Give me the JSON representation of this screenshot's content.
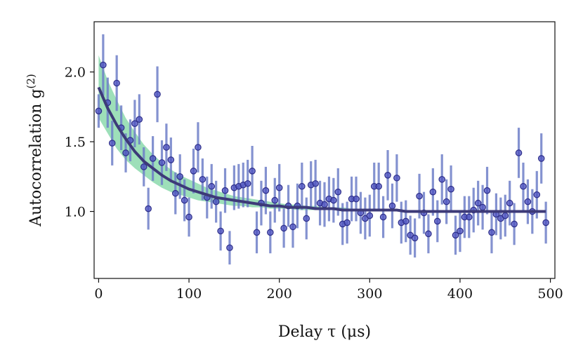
{
  "chart_data": {
    "type": "scatter",
    "title": "",
    "xlabel": "Delay τ (μs)",
    "ylabel": "Autocorrelation g",
    "ylabel_superscript": "(2)",
    "xlim": [
      -5,
      505
    ],
    "ylim": [
      0.52,
      2.36
    ],
    "xticks": [
      0,
      100,
      200,
      300,
      400,
      500
    ],
    "xtick_labels": [
      "0",
      "100",
      "200",
      "300",
      "400",
      "500"
    ],
    "yticks": [
      1.0,
      1.5,
      2.0
    ],
    "ytick_labels": [
      "1.0",
      "1.5",
      "2.0"
    ],
    "grid": false,
    "legend": "none",
    "colors": {
      "points": "#4b4fbf",
      "errorbars": "#6f7fc8",
      "fit_line": "#3d3a78",
      "band": "#5cc98a"
    },
    "series": [
      {
        "kind": "errorbar_points",
        "x": [
          0,
          5,
          10,
          15,
          20,
          25,
          30,
          35,
          40,
          45,
          50,
          55,
          60,
          65,
          70,
          75,
          80,
          85,
          90,
          95,
          100,
          105,
          110,
          115,
          120,
          125,
          130,
          135,
          140,
          145,
          150,
          155,
          160,
          165,
          170,
          175,
          180,
          185,
          190,
          195,
          200,
          205,
          210,
          215,
          220,
          225,
          230,
          235,
          240,
          245,
          250,
          255,
          260,
          265,
          270,
          275,
          280,
          285,
          290,
          295,
          300,
          305,
          310,
          315,
          320,
          325,
          330,
          335,
          340,
          345,
          350,
          355,
          360,
          365,
          370,
          375,
          380,
          385,
          390,
          395,
          400,
          405,
          410,
          415,
          420,
          425,
          430,
          435,
          440,
          445,
          450,
          455,
          460,
          465,
          470,
          475,
          480,
          485,
          490,
          495
        ],
        "y": [
          1.72,
          2.05,
          1.78,
          1.49,
          1.92,
          1.6,
          1.42,
          1.51,
          1.63,
          1.66,
          1.32,
          1.02,
          1.38,
          1.84,
          1.35,
          1.46,
          1.37,
          1.13,
          1.25,
          1.08,
          0.96,
          1.29,
          1.46,
          1.23,
          1.1,
          1.18,
          1.07,
          0.86,
          1.15,
          0.74,
          1.17,
          1.18,
          1.19,
          1.2,
          1.29,
          0.85,
          1.06,
          1.15,
          0.85,
          1.08,
          1.17,
          0.88,
          1.04,
          0.89,
          1.04,
          1.18,
          0.95,
          1.19,
          1.2,
          1.06,
          1.05,
          1.09,
          1.08,
          1.14,
          0.91,
          0.92,
          1.09,
          1.09,
          0.99,
          0.95,
          0.97,
          1.18,
          1.18,
          0.96,
          1.26,
          1.04,
          1.24,
          0.92,
          0.93,
          0.83,
          0.81,
          1.11,
          0.99,
          0.84,
          1.14,
          0.93,
          1.23,
          1.07,
          1.16,
          0.83,
          0.86,
          0.96,
          0.96,
          1.01,
          1.06,
          1.03,
          1.15,
          0.85,
          0.98,
          0.95,
          0.97,
          1.06,
          0.91,
          1.42,
          1.18,
          1.07,
          1.0,
          1.12,
          1.38,
          0.92
        ],
        "yerr": [
          0.12,
          0.22,
          0.18,
          0.16,
          0.2,
          0.16,
          0.14,
          0.15,
          0.17,
          0.18,
          0.14,
          0.15,
          0.16,
          0.2,
          0.16,
          0.17,
          0.16,
          0.15,
          0.16,
          0.15,
          0.14,
          0.16,
          0.18,
          0.15,
          0.15,
          0.16,
          0.15,
          0.14,
          0.16,
          0.12,
          0.16,
          0.16,
          0.16,
          0.17,
          0.18,
          0.15,
          0.16,
          0.17,
          0.15,
          0.16,
          0.17,
          0.14,
          0.15,
          0.15,
          0.16,
          0.17,
          0.15,
          0.17,
          0.17,
          0.16,
          0.16,
          0.16,
          0.16,
          0.17,
          0.15,
          0.15,
          0.16,
          0.16,
          0.15,
          0.15,
          0.15,
          0.17,
          0.17,
          0.15,
          0.18,
          0.16,
          0.17,
          0.15,
          0.15,
          0.14,
          0.14,
          0.16,
          0.15,
          0.14,
          0.17,
          0.15,
          0.18,
          0.16,
          0.17,
          0.14,
          0.15,
          0.15,
          0.15,
          0.16,
          0.16,
          0.16,
          0.17,
          0.15,
          0.15,
          0.15,
          0.15,
          0.16,
          0.15,
          0.18,
          0.17,
          0.16,
          0.16,
          0.17,
          0.18,
          0.15
        ]
      },
      {
        "kind": "fit_line",
        "x": [
          0,
          10,
          20,
          30,
          40,
          50,
          60,
          70,
          80,
          90,
          100,
          110,
          120,
          130,
          140,
          150,
          160,
          170,
          180,
          190,
          200,
          210,
          220,
          230,
          240,
          250,
          260,
          270,
          280,
          290,
          300,
          310,
          320,
          330,
          340,
          350,
          360,
          370,
          380,
          390,
          400,
          410,
          420,
          430,
          440,
          450,
          460,
          470,
          480,
          490,
          495
        ],
        "y": [
          1.89,
          1.74,
          1.62,
          1.52,
          1.43,
          1.36,
          1.31,
          1.26,
          1.22,
          1.19,
          1.16,
          1.14,
          1.12,
          1.1,
          1.09,
          1.08,
          1.07,
          1.06,
          1.05,
          1.04,
          1.04,
          1.03,
          1.03,
          1.03,
          1.02,
          1.02,
          1.02,
          1.01,
          1.01,
          1.01,
          1.01,
          1.01,
          1.01,
          1.01,
          1.0,
          1.0,
          1.0,
          1.0,
          1.0,
          1.0,
          1.0,
          1.0,
          1.0,
          1.0,
          1.0,
          1.0,
          1.0,
          1.0,
          1.0,
          1.0,
          1.0
        ]
      },
      {
        "kind": "confidence_band",
        "x": [
          0,
          10,
          20,
          30,
          40,
          50,
          60,
          70,
          80,
          90,
          100,
          110,
          120,
          130,
          140,
          150,
          160,
          170,
          180,
          190,
          200,
          210,
          220,
          230,
          240,
          250,
          260,
          270,
          280,
          290,
          300,
          310,
          320,
          330,
          340,
          350,
          360,
          370,
          380,
          390,
          400,
          410,
          420,
          430,
          440,
          450,
          460,
          470,
          480,
          490,
          495
        ],
        "upper": [
          2.12,
          1.94,
          1.8,
          1.67,
          1.57,
          1.48,
          1.41,
          1.35,
          1.3,
          1.26,
          1.23,
          1.2,
          1.17,
          1.15,
          1.13,
          1.11,
          1.1,
          1.09,
          1.08,
          1.07,
          1.06,
          1.05,
          1.05,
          1.04,
          1.04,
          1.03,
          1.03,
          1.03,
          1.02,
          1.02,
          1.02,
          1.02,
          1.01,
          1.01,
          1.01,
          1.01,
          1.01,
          1.01,
          1.01,
          1.01,
          1.01,
          1.01,
          1.01,
          1.01,
          1.01,
          1.01,
          1.01,
          1.01,
          1.01,
          1.01,
          1.01
        ],
        "lower": [
          1.67,
          1.56,
          1.45,
          1.37,
          1.31,
          1.26,
          1.21,
          1.17,
          1.14,
          1.12,
          1.1,
          1.08,
          1.07,
          1.06,
          1.05,
          1.04,
          1.04,
          1.03,
          1.03,
          1.02,
          1.02,
          1.02,
          1.01,
          1.01,
          1.01,
          1.01,
          1.01,
          1.0,
          1.0,
          1.0,
          1.0,
          1.0,
          1.0,
          1.0,
          1.0,
          0.99,
          0.99,
          0.99,
          0.99,
          0.99,
          0.99,
          0.99,
          0.99,
          0.99,
          0.99,
          0.99,
          0.99,
          0.99,
          0.99,
          0.99,
          0.99
        ]
      }
    ]
  }
}
